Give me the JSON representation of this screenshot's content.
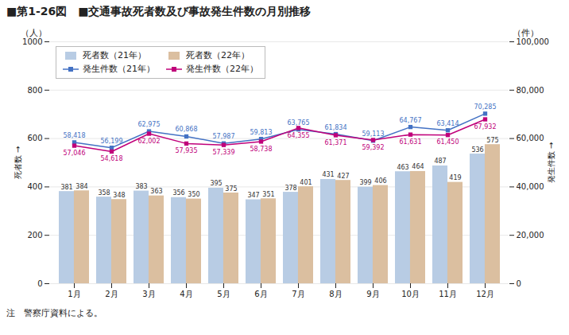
{
  "chart_data": {
    "type": "bar",
    "title": "■第1-26図　■交通事故死者数及び事故発生件数の月別推移",
    "categories": [
      "1月",
      "2月",
      "3月",
      "4月",
      "5月",
      "6月",
      "7月",
      "8月",
      "9月",
      "10月",
      "11月",
      "12月"
    ],
    "series": [
      {
        "name": "死者数（21年）",
        "type": "bar",
        "color": "#b8cce4",
        "values": [
          381,
          358,
          383,
          356,
          395,
          347,
          378,
          431,
          399,
          463,
          487,
          536
        ]
      },
      {
        "name": "死者数（22年）",
        "type": "bar",
        "color": "#dbbfa0",
        "values": [
          384,
          348,
          363,
          350,
          375,
          351,
          401,
          427,
          406,
          464,
          419,
          575
        ]
      },
      {
        "name": "発生件数（21年）",
        "type": "line",
        "axis": "y2",
        "color": "#4472c4",
        "marker": "square",
        "values": [
          58418,
          56199,
          62975,
          60868,
          57987,
          59813,
          63765,
          61834,
          59113,
          64767,
          63414,
          70285
        ],
        "value_labels": [
          "58,418",
          "56,199",
          "62,975",
          "60,868",
          "57,987",
          "59,813",
          "63,765",
          "61,834",
          "59,113",
          "64,767",
          "63,414",
          "70,285"
        ]
      },
      {
        "name": "発生件数（22年）",
        "type": "line",
        "axis": "y2",
        "color": "#c0007a",
        "marker": "square",
        "values": [
          57046,
          54618,
          62002,
          57935,
          57339,
          58738,
          64355,
          61371,
          59392,
          61631,
          61450,
          67932
        ],
        "value_labels": [
          "57,046",
          "54,618",
          "62,002",
          "57,935",
          "57,339",
          "58,738",
          "64,355",
          "61,371",
          "59,392",
          "61,631",
          "61,450",
          "67,932"
        ]
      }
    ],
    "ylabel": "死者数",
    "y2label": "発生件数",
    "ylim": [
      0,
      1000
    ],
    "yticks": [
      0,
      200,
      400,
      600,
      800,
      1000
    ],
    "y2lim": [
      0,
      100000
    ],
    "y2ticks": [
      0,
      {
        "value": 20000,
        "label": "20,000"
      },
      {
        "value": 40000,
        "label": "40,000"
      },
      {
        "value": 60000,
        "label": "60,000"
      },
      {
        "value": 80000,
        "label": "80,000"
      },
      {
        "value": 100000,
        "label": "100,000"
      }
    ],
    "annotations": [
      {
        "text": "（人）",
        "axis": "y"
      },
      {
        "text": "（件）",
        "axis": "y2"
      }
    ],
    "caption": "注　警察庁資料による。",
    "grid": true,
    "legend": "upper left",
    "data_labels": true
  }
}
